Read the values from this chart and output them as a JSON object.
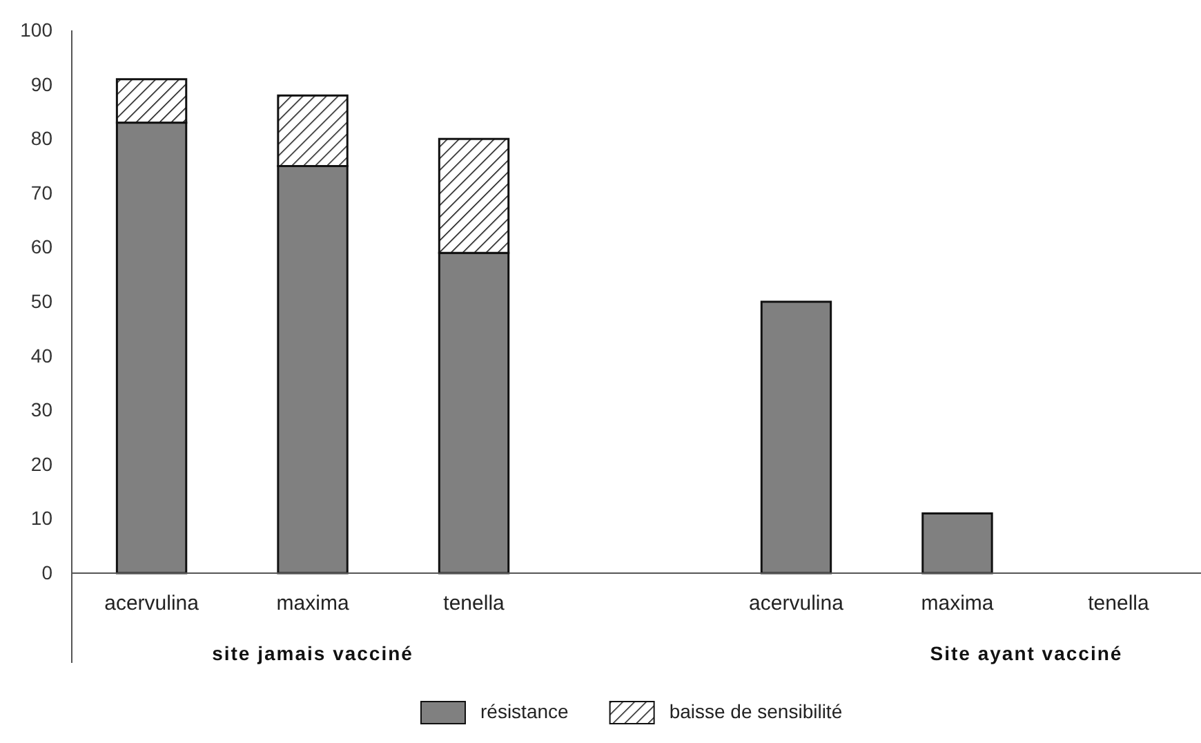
{
  "chart_data": {
    "type": "bar",
    "stacked": true,
    "categories": [
      "acervulina",
      "maxima",
      "tenella",
      null,
      "acervulina",
      "maxima",
      "tenella"
    ],
    "series": [
      {
        "name": "résistance",
        "color": "#808080",
        "values": [
          83,
          75,
          59,
          null,
          50,
          11,
          0
        ]
      },
      {
        "name": "baisse de sensibilité",
        "color": "#111111",
        "values": [
          8,
          13,
          21,
          null,
          0,
          0,
          0
        ]
      }
    ],
    "ylim": [
      0,
      100
    ],
    "yticks": [
      0,
      10,
      20,
      30,
      40,
      50,
      60,
      70,
      80,
      90,
      100
    ],
    "annotations": [
      "site jamais vacciné",
      "Site ayant vacciné"
    ],
    "legend": "bottom",
    "grid": false
  }
}
